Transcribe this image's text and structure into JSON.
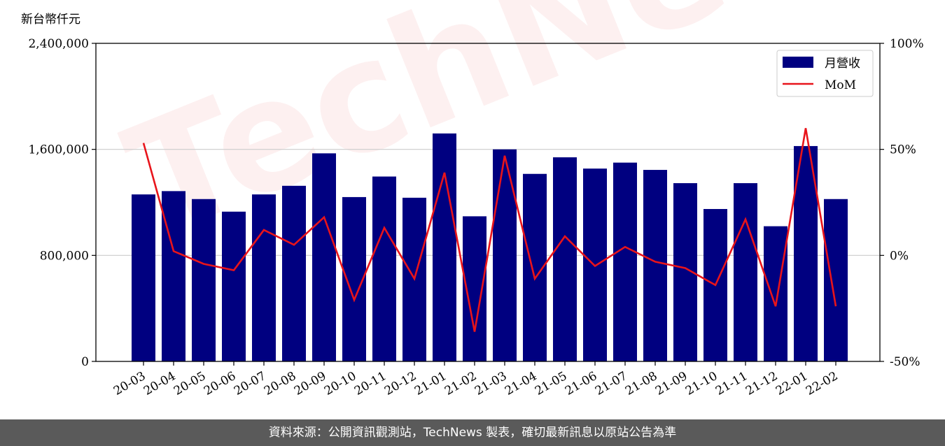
{
  "chart_data": {
    "type": "bar",
    "unit_label": "新台幣仟元",
    "categories": [
      "20-03",
      "20-04",
      "20-05",
      "20-06",
      "20-07",
      "20-08",
      "20-09",
      "20-10",
      "20-11",
      "20-12",
      "21-01",
      "21-02",
      "21-03",
      "21-04",
      "21-05",
      "21-06",
      "21-07",
      "21-08",
      "21-09",
      "21-10",
      "21-11",
      "21-12",
      "22-01",
      "22-02"
    ],
    "series": [
      {
        "name": "月營收",
        "axis": "left",
        "type": "bar",
        "color": "#000080",
        "values": [
          1260000,
          1285000,
          1225000,
          1130000,
          1260000,
          1325000,
          1570000,
          1240000,
          1395000,
          1235000,
          1720000,
          1095000,
          1600000,
          1415000,
          1540000,
          1455000,
          1500000,
          1445000,
          1345000,
          1150000,
          1345000,
          1020000,
          1625000,
          1225000
        ]
      },
      {
        "name": "MoM",
        "axis": "right",
        "type": "line",
        "color": "#e8141b",
        "values": [
          53,
          2,
          -4,
          -7,
          12,
          5,
          18,
          -21,
          13,
          -11,
          39,
          -36,
          47,
          -11,
          9,
          -5,
          4,
          -3,
          -6,
          -14,
          17,
          -24,
          60,
          -24
        ]
      }
    ],
    "y_left": {
      "min": 0,
      "max": 2400000,
      "ticks": [
        0,
        800000,
        1600000,
        2400000
      ],
      "tick_labels": [
        "0",
        "800,000",
        "1,600,000",
        "2,400,000"
      ]
    },
    "y_right": {
      "min": -50,
      "max": 100,
      "ticks": [
        -50,
        0,
        50,
        100
      ],
      "tick_labels": [
        "-50%",
        "0%",
        "50%",
        "100%"
      ]
    },
    "grid": "horizontal",
    "legend_position": "top-right"
  },
  "watermark": "TechNews",
  "footer_text": "資料來源：公開資訊觀測站，TechNews 製表，確切最新訊息以原站公告為準"
}
